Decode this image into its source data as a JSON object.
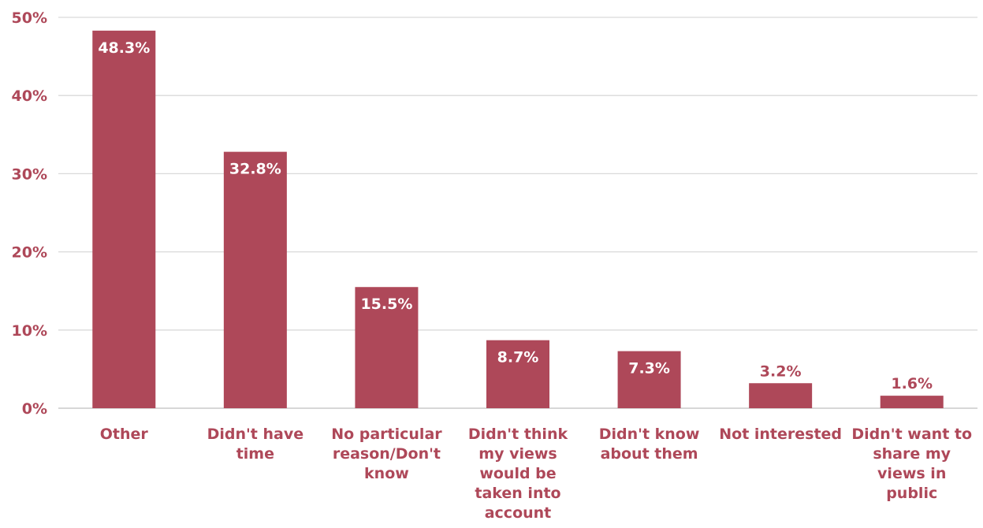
{
  "chart_data": {
    "type": "bar",
    "categories": [
      "Other",
      "Didn't have time",
      "No particular reason/Don't know",
      "Didn't think my views would be taken into account",
      "Didn't know about them",
      "Not interested",
      "Didn't want to share my views in public"
    ],
    "category_lines": [
      [
        "Other"
      ],
      [
        "Didn't have",
        "time"
      ],
      [
        "No particular",
        "reason/Don't",
        "know"
      ],
      [
        "Didn't think",
        "my views",
        "would be",
        "taken into",
        "account"
      ],
      [
        "Didn't know",
        "about them"
      ],
      [
        "Not interested"
      ],
      [
        "Didn't want to",
        "share my",
        "views in",
        "public"
      ]
    ],
    "values": [
      48.3,
      32.8,
      15.5,
      8.7,
      7.3,
      3.2,
      1.6
    ],
    "data_labels": [
      "48.3%",
      "32.8%",
      "15.5%",
      "8.7%",
      "7.3%",
      "3.2%",
      "1.6%"
    ],
    "ylim": [
      0,
      50
    ],
    "yticks": [
      0,
      10,
      20,
      30,
      40,
      50
    ],
    "ytick_labels": [
      "0%",
      "10%",
      "20%",
      "30%",
      "40%",
      "50%"
    ],
    "grid": true,
    "legend": "none",
    "title": "",
    "xlabel": "",
    "ylabel": "",
    "colors": {
      "bar": "#ae4859",
      "label_text": "#ae4859",
      "inside_label": "#ffffff",
      "grid": "#d9d9d9",
      "axis": "#bfbfbf"
    }
  }
}
